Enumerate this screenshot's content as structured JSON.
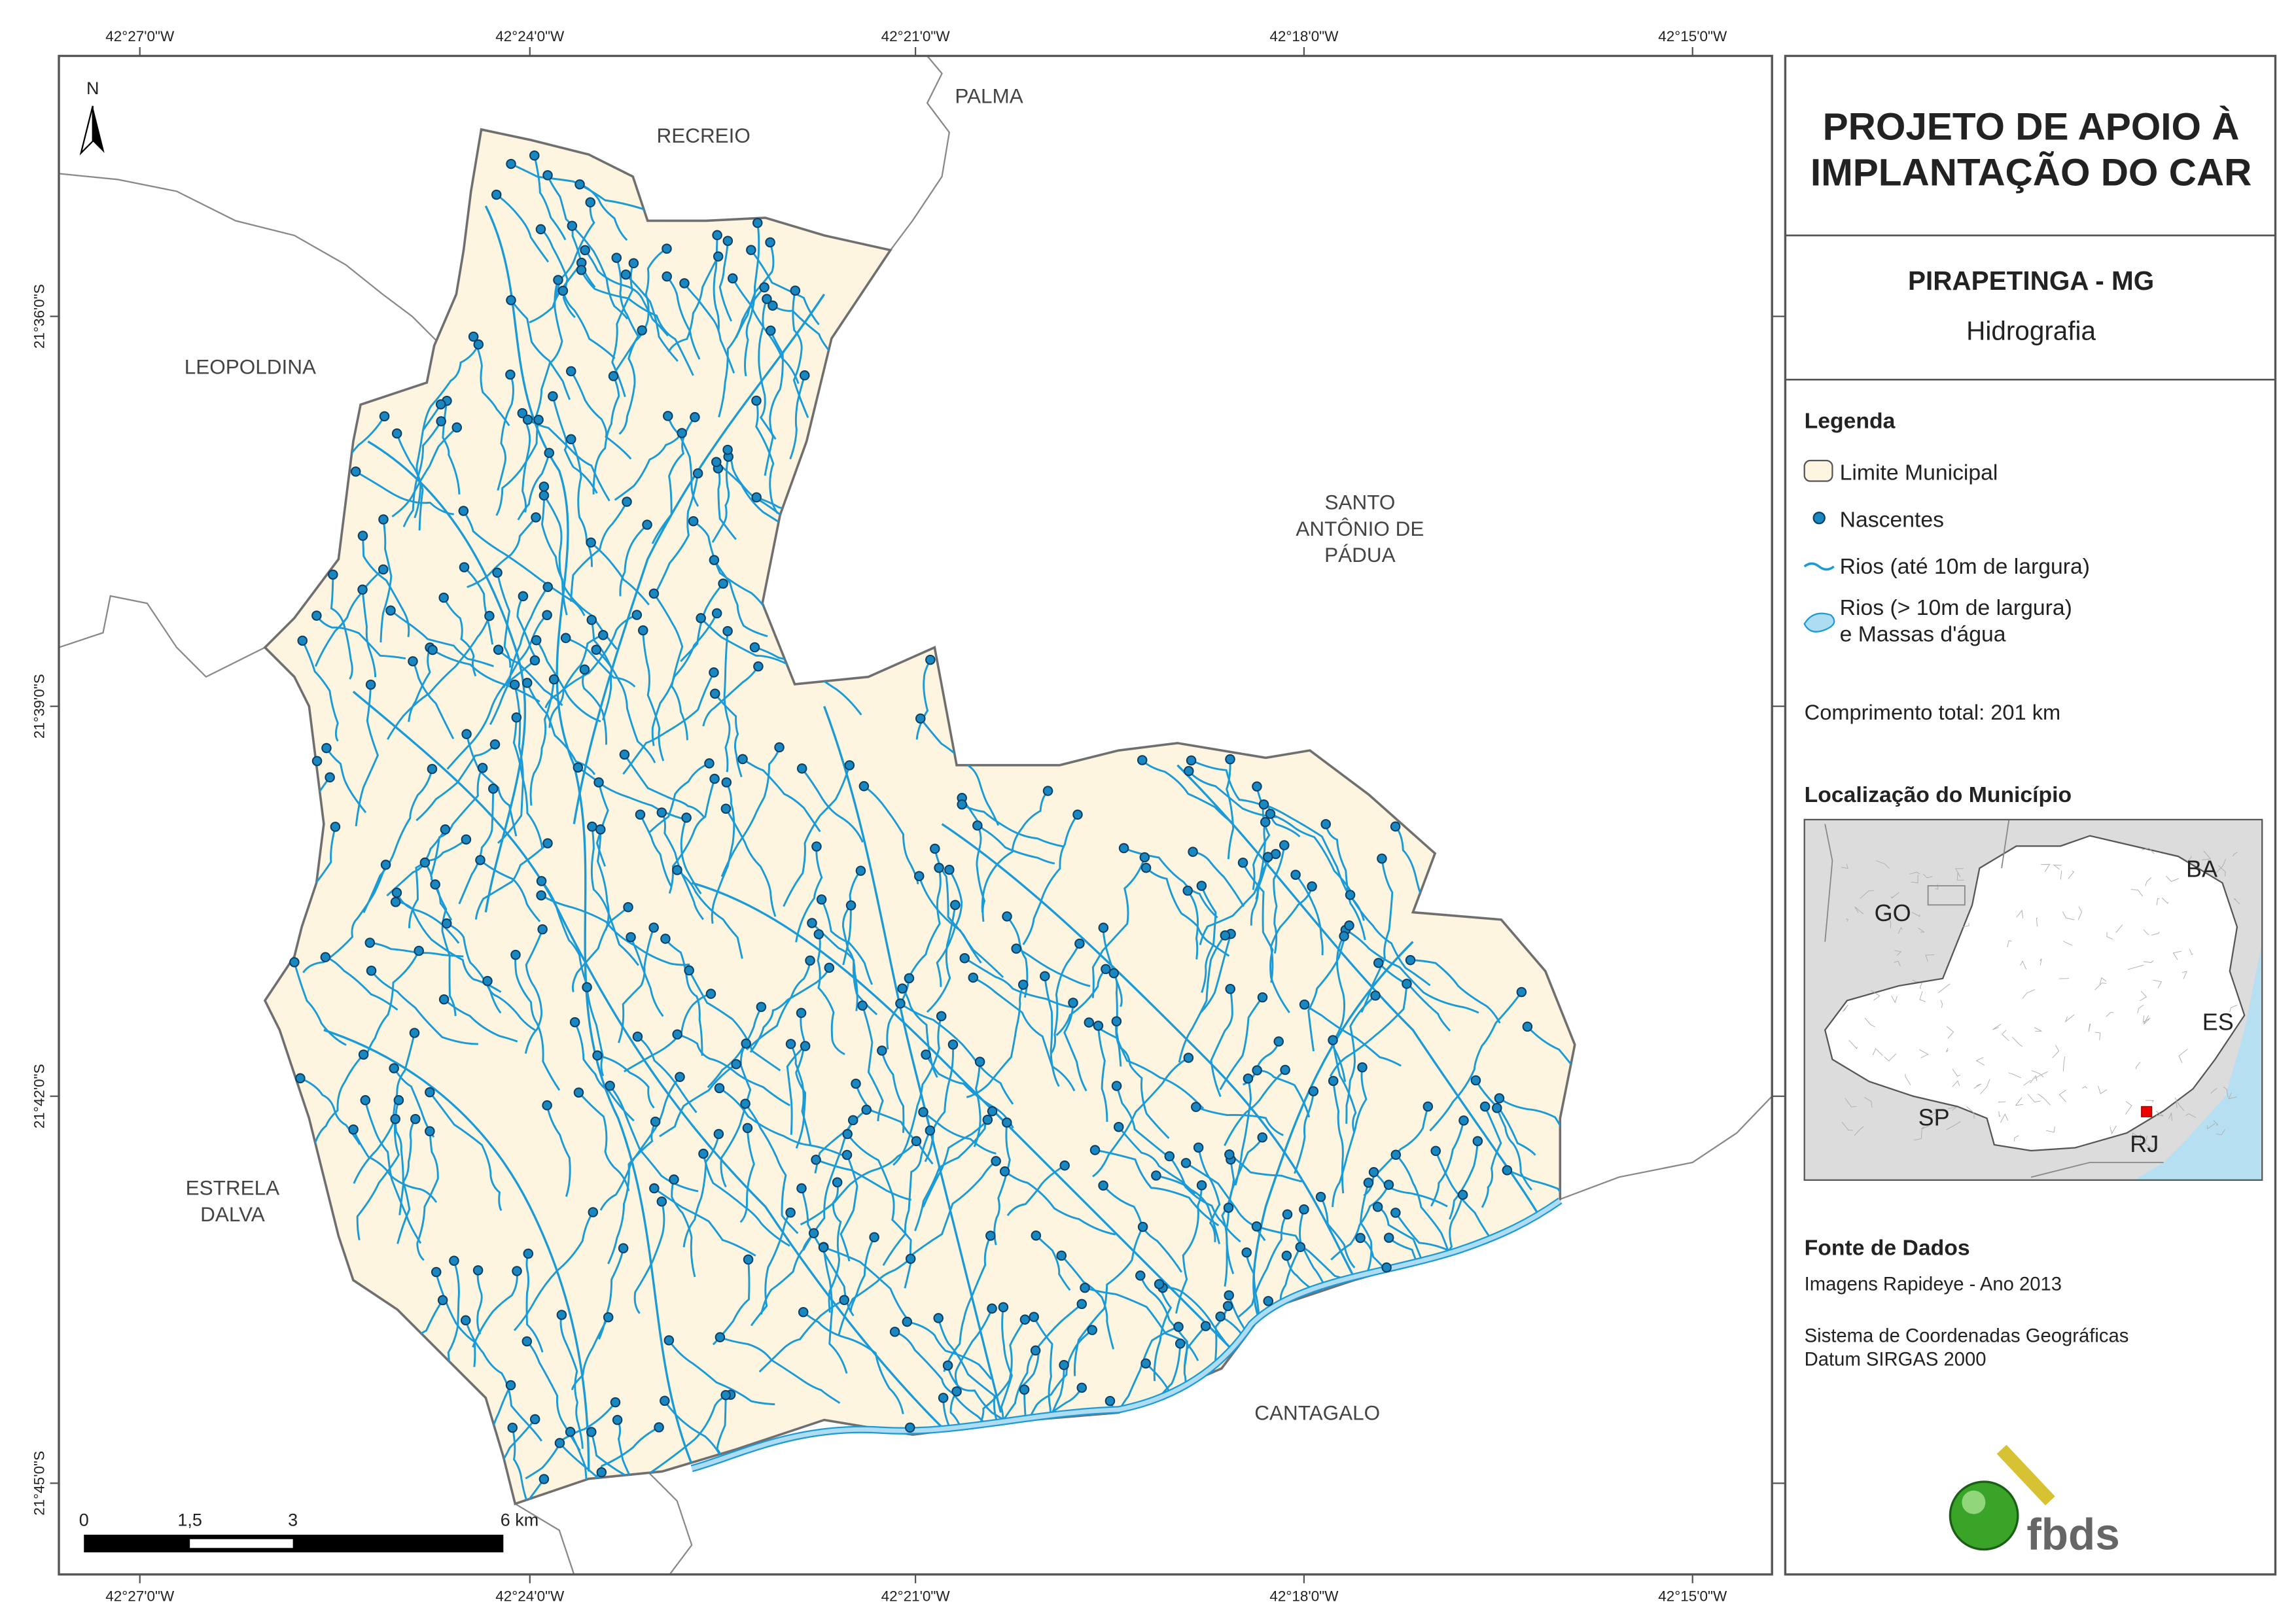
{
  "map": {
    "north": "N",
    "coordinates": {
      "top": [
        "42°27'0\"W",
        "42°24'0\"W",
        "42°21'0\"W",
        "42°18'0\"W",
        "42°15'0\"W"
      ],
      "bottom": [
        "42°27'0\"W",
        "42°24'0\"W",
        "42°21'0\"W",
        "42°18'0\"W",
        "42°15'0\"W"
      ],
      "left": [
        "21°36'0\"S",
        "21°39'0\"S",
        "21°42'0\"S",
        "21°45'0\"S"
      ]
    },
    "places": [
      [
        "PALMA"
      ],
      [
        "RECREIO"
      ],
      [
        "LEOPOLDINA"
      ],
      [
        "SANTO",
        "ANTÔNIO DE",
        "PÁDUA"
      ],
      [
        "ESTRELA",
        "DALVA"
      ],
      [
        "CANTAGALO"
      ]
    ],
    "scale_bar": [
      "0",
      "1,5",
      "3",
      "6 km"
    ]
  },
  "panel": {
    "title": [
      "PROJETO DE APOIO À",
      "IMPLANTAÇÃO DO CAR"
    ],
    "subtitle": "PIRAPETINGA - MG",
    "theme": "Hidrografia",
    "legend": {
      "title": "Legenda",
      "items": [
        [
          "Limite Municipal"
        ],
        [
          "Nascentes"
        ],
        [
          "Rios (até 10m de largura)"
        ],
        [
          "Rios (> 10m de largura)",
          "e Massas d'água"
        ]
      ],
      "total": "Comprimento total:  201 km"
    },
    "location": {
      "title": "Localização do Município",
      "labels": [
        "BA",
        "GO",
        "ES",
        "SP",
        "RJ"
      ]
    },
    "sources": {
      "title": "Fonte de Dados",
      "lines": [
        "Imagens Rapideye - Ano 2013",
        "Sistema de Coordenadas Geográficas",
        "Datum SIRGAS 2000"
      ]
    },
    "logo": "fbds"
  }
}
